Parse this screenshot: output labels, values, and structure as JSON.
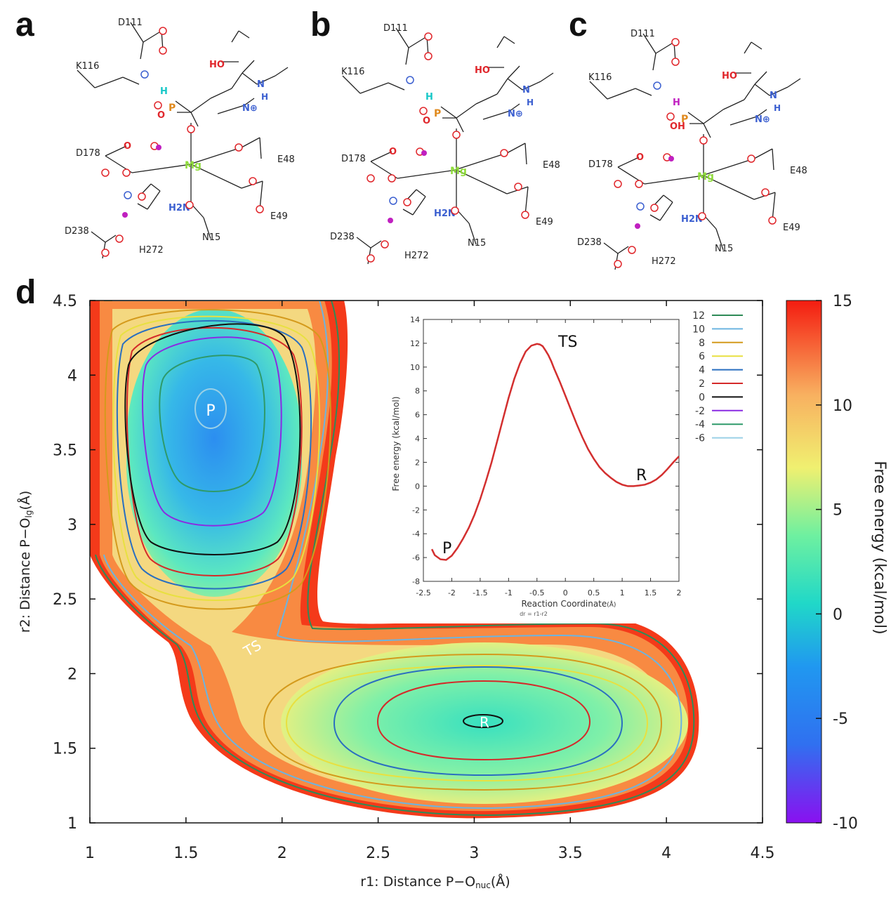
{
  "panels": {
    "a": "a",
    "b": "b",
    "c": "c",
    "d": "d"
  },
  "structures": {
    "a": {
      "residues": [
        "D111",
        "K116",
        "D178",
        "E48",
        "E49",
        "D238",
        "H272",
        "N15"
      ],
      "atoms": [
        "HO",
        "N",
        "H",
        "O",
        "P",
        "Mg",
        "H2N",
        "N⊕",
        "H",
        "O"
      ]
    },
    "b": {
      "residues": [
        "D111",
        "K116",
        "D178",
        "E48",
        "E49",
        "D238",
        "H272",
        "N15"
      ],
      "atoms": [
        "HO",
        "N",
        "H",
        "O",
        "P",
        "Mg",
        "H2N",
        "N⊕",
        "H",
        "O"
      ]
    },
    "c": {
      "residues": [
        "D111",
        "K116",
        "D178",
        "E48",
        "E49",
        "D238",
        "H272",
        "N15"
      ],
      "atoms": [
        "HO",
        "N",
        "H",
        "OH",
        "P",
        "Mg",
        "H2N",
        "N⊕",
        "H",
        "O"
      ]
    }
  },
  "colors": {
    "oxygen": "#e0262b",
    "nitrogen": "#3b5fd0",
    "phosphorus": "#e08a1e",
    "magnesium": "#8fdc3a",
    "h_cyan": "#18c8c8",
    "h_magenta": "#c020c0",
    "curve": "#d32f2f"
  },
  "chart_data": [
    {
      "type": "heatmap",
      "xlabel": "r1: Distance P−O",
      "xlabel_sub": "nuc",
      "xlabel_unit": "(Å)",
      "ylabel": "r2: Distance P−O",
      "ylabel_sub": "lg",
      "ylabel_unit": "(Å)",
      "xlim": [
        1,
        4.5
      ],
      "ylim": [
        1,
        4.5
      ],
      "xticks": [
        "1",
        "1.5",
        "2",
        "2.5",
        "3",
        "3.5",
        "4",
        "4.5"
      ],
      "yticks": [
        "1",
        "1.5",
        "2",
        "2.5",
        "3",
        "3.5",
        "4",
        "4.5"
      ],
      "colorbar": {
        "label": "Free energy (kcal/mol)",
        "range": [
          -10,
          15
        ],
        "ticks": [
          "15",
          "10",
          "5",
          "0",
          "-5",
          "-10"
        ]
      },
      "annotations": [
        {
          "text": "P",
          "x": 1.65,
          "y": 3.78
        },
        {
          "text": "TS",
          "x": 1.85,
          "y": 2.17
        },
        {
          "text": "R",
          "x": 3.04,
          "y": 1.68
        }
      ],
      "minima": [
        {
          "label": "P",
          "r1": 1.65,
          "r2": 3.78,
          "energy": -6.2
        },
        {
          "label": "R",
          "r1": 3.04,
          "r2": 1.68,
          "energy": 0.0
        }
      ],
      "contour_levels": [
        "12",
        "10",
        "8",
        "6",
        "4",
        "2",
        "0",
        "-2",
        "-4",
        "-6"
      ],
      "contour_colors": [
        "#2e8b57",
        "#6cb4e0",
        "#d49a1c",
        "#e8e040",
        "#2a6fc0",
        "#d42a2a",
        "#111111",
        "#8a2be2",
        "#2e9a6a",
        "#9ad0e6"
      ]
    },
    {
      "type": "line",
      "xlabel": "Reaction Coordinate",
      "xlabel_unit": "(Å)",
      "subnote": "dr = r1-r2",
      "ylabel": "Free energy (kcal/mol)",
      "xlim": [
        -2.5,
        2
      ],
      "ylim": [
        -8,
        14
      ],
      "xticks": [
        "-2.5",
        "-2",
        "-1.5",
        "-1",
        "-0.5",
        "0",
        "0.5",
        "1",
        "1.5",
        "2"
      ],
      "yticks": [
        "-8",
        "-6",
        "-4",
        "-2",
        "0",
        "2",
        "4",
        "6",
        "8",
        "10",
        "12",
        "14"
      ],
      "x": [
        -2.35,
        -2.3,
        -2.2,
        -2.1,
        -2.0,
        -1.9,
        -1.8,
        -1.7,
        -1.6,
        -1.5,
        -1.4,
        -1.3,
        -1.2,
        -1.1,
        -1.0,
        -0.9,
        -0.8,
        -0.7,
        -0.6,
        -0.5,
        -0.45,
        -0.4,
        -0.35,
        -0.3,
        -0.25,
        -0.2,
        -0.1,
        0.0,
        0.1,
        0.2,
        0.3,
        0.4,
        0.5,
        0.6,
        0.7,
        0.8,
        0.9,
        1.0,
        1.1,
        1.2,
        1.3,
        1.4,
        1.5,
        1.6,
        1.7,
        1.8,
        1.9,
        2.0
      ],
      "y": [
        -5.3,
        -5.8,
        -6.15,
        -6.2,
        -5.85,
        -5.2,
        -4.4,
        -3.5,
        -2.4,
        -1.1,
        0.4,
        2.0,
        3.8,
        5.6,
        7.4,
        9.0,
        10.3,
        11.3,
        11.8,
        11.95,
        11.9,
        11.75,
        11.4,
        11.0,
        10.5,
        9.9,
        8.8,
        7.6,
        6.4,
        5.2,
        4.1,
        3.1,
        2.3,
        1.6,
        1.1,
        0.7,
        0.35,
        0.12,
        0.0,
        0.0,
        0.05,
        0.12,
        0.3,
        0.55,
        0.95,
        1.45,
        2.0,
        2.5
      ],
      "annotations": [
        {
          "text": "TS",
          "x": -0.1,
          "y": 12.0
        },
        {
          "text": "R",
          "x": 1.35,
          "y": 0.9
        },
        {
          "text": "P",
          "x": -2.2,
          "y": -5.4
        }
      ],
      "legend": {
        "placement": "right",
        "entries": [
          "12",
          "10",
          "8",
          "6",
          "4",
          "2",
          "0",
          "-2",
          "-4",
          "-6"
        ]
      }
    }
  ]
}
